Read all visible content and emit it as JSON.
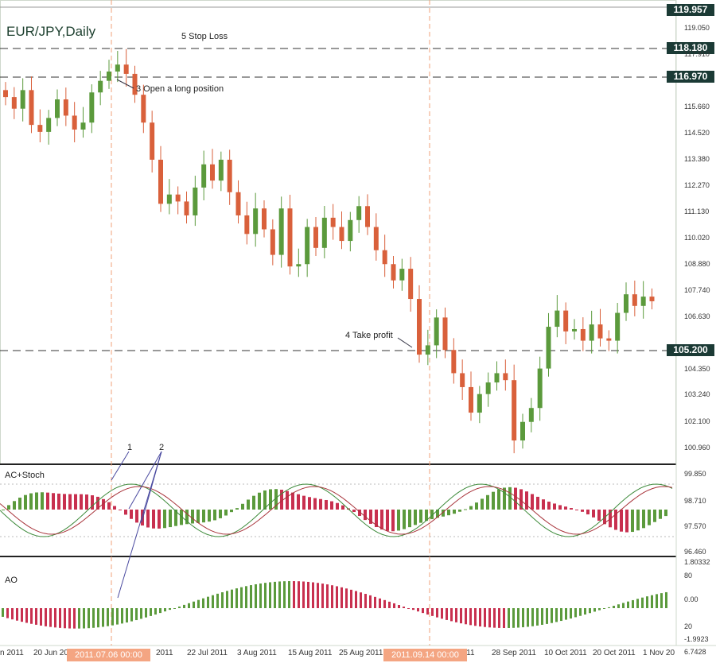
{
  "title": "EUR/JPY,Daily",
  "annotations": {
    "stop_loss": "5  Stop Loss",
    "open_long": "3 Open a long position",
    "take_profit": "4 Take profit",
    "marker1": "1",
    "marker2": "2"
  },
  "price_badges": {
    "top": "119.957",
    "stop": "118.180",
    "open": "116.970",
    "profit": "105.200"
  },
  "price_axis": [
    "119.050",
    "117.910",
    "115.660",
    "114.520",
    "113.380",
    "112.270",
    "111.130",
    "110.020",
    "108.880",
    "107.740",
    "106.630",
    "104.350",
    "103.240",
    "102.100",
    "100.960"
  ],
  "ac_stoch": {
    "label": "AC+Stoch",
    "axis": [
      "99.850",
      "98.710",
      "97.570",
      "96.460"
    ]
  },
  "ao": {
    "label": "AO",
    "axis": [
      "1.80332",
      "80",
      "0.00",
      "20",
      "-1.9923",
      "6.7428"
    ]
  },
  "date_axis": {
    "labels": [
      "n 2011",
      "20 Jun 20",
      "2011",
      "22 Jul 2011",
      "3 Aug 2011",
      "15 Aug 2011",
      "25 Aug 2011",
      "2011",
      "28 Sep 2011",
      "10 Oct 2011",
      "20 Oct 2011",
      "1 Nov 20"
    ],
    "badge1": "2011.07.06 00:00",
    "badge2": "2011.09.14 00:00"
  },
  "colors": {
    "up": "#5b9a3c",
    "down": "#d9603b",
    "ac_up": "#5b9a3c",
    "ac_down": "#c8304f"
  },
  "chart_data": {
    "type": "candlestick",
    "title": "EUR/JPY,Daily",
    "levels": {
      "stop_loss": 118.18,
      "open": 116.97,
      "take_profit": 105.2
    },
    "close_path": [
      116.1,
      115.6,
      116.4,
      114.9,
      114.6,
      115.2,
      116.0,
      115.3,
      114.7,
      115.0,
      116.3,
      116.8,
      117.2,
      117.5,
      117.1,
      116.2,
      115.0,
      113.4,
      111.5,
      111.9,
      111.6,
      111.0,
      112.2,
      113.2,
      112.5,
      113.4,
      112.0,
      111.0,
      110.2,
      111.3,
      110.4,
      109.3,
      111.3,
      108.8,
      108.9,
      110.5,
      109.6,
      110.9,
      110.5,
      109.9,
      110.8,
      111.4,
      110.5,
      109.5,
      108.9,
      108.2,
      108.7,
      107.4,
      105.0,
      105.4,
      106.6,
      105.2,
      104.2,
      103.6,
      102.5,
      103.3,
      103.8,
      104.2,
      103.9,
      101.3,
      102.1,
      102.7,
      104.4,
      106.2,
      106.9,
      106.0,
      106.1,
      105.6,
      106.3,
      105.7,
      105.6,
      106.8,
      107.6,
      107.1,
      107.5,
      107.3
    ]
  }
}
